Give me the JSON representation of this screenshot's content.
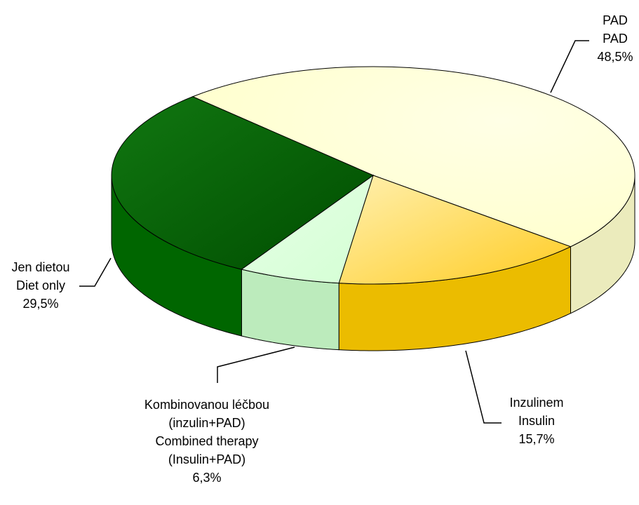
{
  "chart_data": {
    "type": "pie3d",
    "categories": [
      [
        "PAD",
        "PAD"
      ],
      [
        "Inzulinem",
        "Insulin"
      ],
      [
        "Kombinovanou léčbou",
        "(inzulin+PAD)",
        "Combined therapy",
        "(Insulin+PAD)"
      ],
      [
        "Jen dietou",
        "Diet only"
      ]
    ],
    "values": [
      48.5,
      15.7,
      6.3,
      29.5
    ],
    "value_labels": [
      "48,5%",
      "15,7%",
      "6,3%",
      "29,5%"
    ],
    "colors": [
      "#ffffcc",
      "#ffcc00",
      "#ccffcc",
      "#006600"
    ]
  }
}
